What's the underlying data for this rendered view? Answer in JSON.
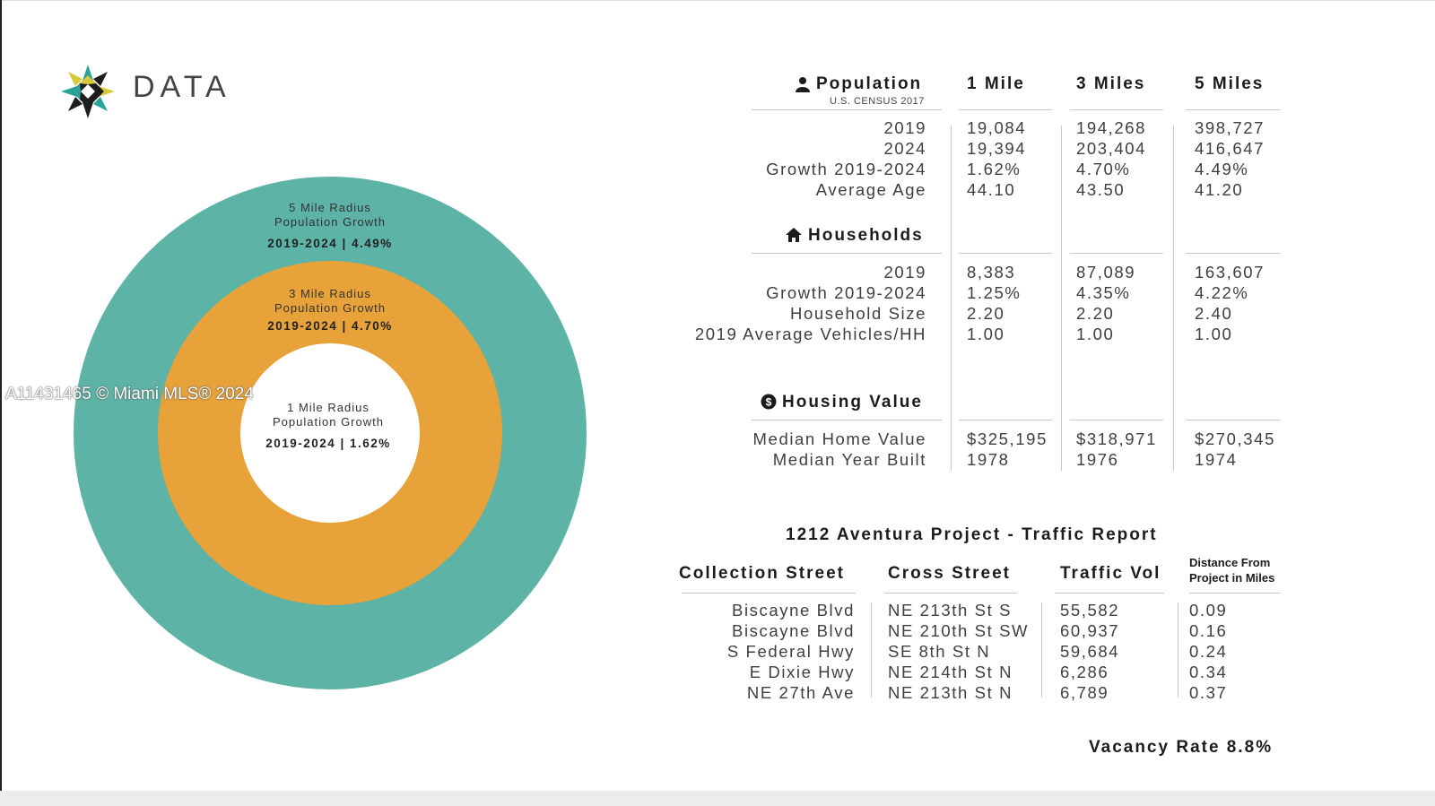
{
  "watermark": "A11431465 © Miami MLS® 2024",
  "logo_text": "DATA",
  "colors": {
    "teal": "#5db3a5",
    "orange": "#e8a23a",
    "text": "#3f3f3f"
  },
  "rings": {
    "outer": {
      "line1": "5 Mile Radius",
      "line2": "Population Growth",
      "value": "2019-2024 | 4.49%"
    },
    "middle": {
      "line1": "3 Mile Radius",
      "line2": "Population Growth",
      "value": "2019-2024  |  4.70%"
    },
    "inner": {
      "line1": "1 Mile Radius",
      "line2": "Population Growth",
      "value": "2019-2024 | 1.62%"
    }
  },
  "columns": [
    "1 Mile",
    "3 Miles",
    "5 Miles"
  ],
  "population": {
    "title": "Population",
    "subtitle": "U.S. CENSUS 2017",
    "rows": [
      {
        "label": "2019",
        "values": [
          "19,084",
          "194,268",
          "398,727"
        ]
      },
      {
        "label": "2024",
        "values": [
          "19,394",
          "203,404",
          "416,647"
        ]
      },
      {
        "label": "Growth 2019-2024",
        "values": [
          "1.62%",
          "4.70%",
          "4.49%"
        ]
      },
      {
        "label": "Average Age",
        "values": [
          "44.10",
          "43.50",
          "41.20"
        ]
      }
    ]
  },
  "households": {
    "title": "Households",
    "rows": [
      {
        "label": "2019",
        "values": [
          "8,383",
          "87,089",
          "163,607"
        ]
      },
      {
        "label": "Growth 2019-2024",
        "values": [
          "1.25%",
          "4.35%",
          "4.22%"
        ]
      },
      {
        "label": "Household Size",
        "values": [
          "2.20",
          "2.20",
          "2.40"
        ]
      },
      {
        "label": "2019 Average Vehicles/HH",
        "values": [
          "1.00",
          "1.00",
          "1.00"
        ]
      }
    ]
  },
  "housing_value": {
    "title": "Housing Value",
    "rows": [
      {
        "label": "Median Home Value",
        "values": [
          "$325,195",
          "$318,971",
          "$270,345"
        ]
      },
      {
        "label": "Median Year Built",
        "values": [
          "1978",
          "1976",
          "1974"
        ]
      }
    ]
  },
  "traffic": {
    "title": "1212 Aventura Project - Traffic Report",
    "headers": {
      "collection": "Collection Street",
      "cross": "Cross Street",
      "vol": "Traffic Vol",
      "dist1": "Distance From",
      "dist2": "Project in Miles"
    },
    "rows": [
      {
        "collection": "Biscayne Blvd",
        "cross": "NE 213th St S",
        "vol": "55,582",
        "dist": "0.09"
      },
      {
        "collection": "Biscayne Blvd",
        "cross": "NE 210th St SW",
        "vol": "60,937",
        "dist": "0.16"
      },
      {
        "collection": "S Federal Hwy",
        "cross": "SE 8th St N",
        "vol": "59,684",
        "dist": "0.24"
      },
      {
        "collection": "E Dixie Hwy",
        "cross": "NE 214th St N",
        "vol": "6,286",
        "dist": "0.34"
      },
      {
        "collection": "NE 27th Ave",
        "cross": "NE 213th St N",
        "vol": "6,789",
        "dist": "0.37"
      }
    ]
  },
  "vacancy": "Vacancy Rate 8.8%"
}
